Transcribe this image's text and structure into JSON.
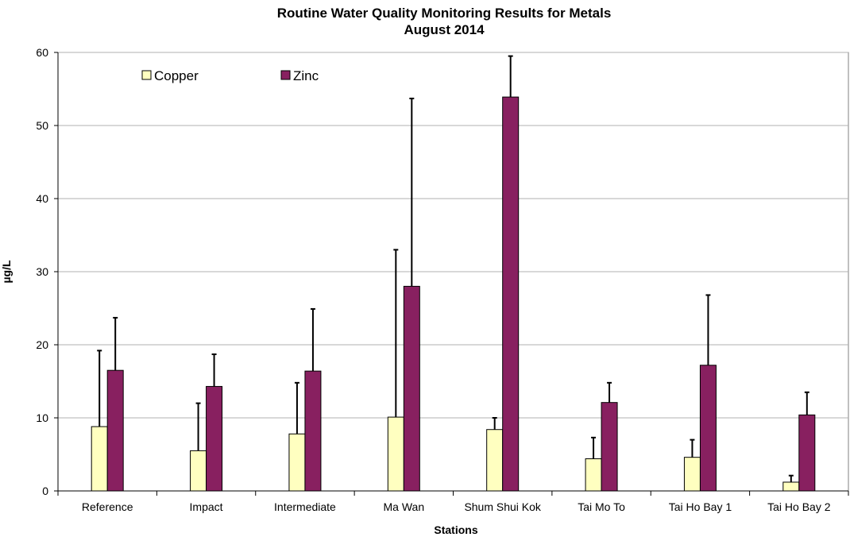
{
  "chart_data": {
    "type": "bar",
    "title": [
      "Routine Water Quality Monitoring Results for Metals",
      "August 2014"
    ],
    "xlabel": "Stations",
    "ylabel": "µg/L",
    "categories": [
      "Reference",
      "Impact",
      "Intermediate",
      "Ma Wan",
      "Shum Shui Kok",
      "Tai Mo To",
      "Tai Ho Bay 1",
      "Tai Ho Bay 2"
    ],
    "ylim": [
      0,
      60
    ],
    "yticks": [
      0,
      10,
      20,
      30,
      40,
      50,
      60
    ],
    "grid": true,
    "legend_position": "top-left",
    "series": [
      {
        "name": "Copper",
        "color": "#ffffc0",
        "values": [
          8.8,
          5.5,
          7.8,
          10.1,
          8.4,
          4.4,
          4.6,
          1.2
        ],
        "error_upper": [
          19.2,
          12.0,
          14.8,
          33.0,
          10.0,
          7.3,
          7.0,
          2.1
        ]
      },
      {
        "name": "Zinc",
        "color": "#882060",
        "values": [
          16.5,
          14.3,
          16.4,
          28.0,
          53.9,
          12.1,
          17.2,
          10.4
        ],
        "error_upper": [
          23.7,
          18.7,
          24.9,
          53.7,
          59.5,
          14.8,
          26.8,
          13.5
        ]
      }
    ]
  }
}
